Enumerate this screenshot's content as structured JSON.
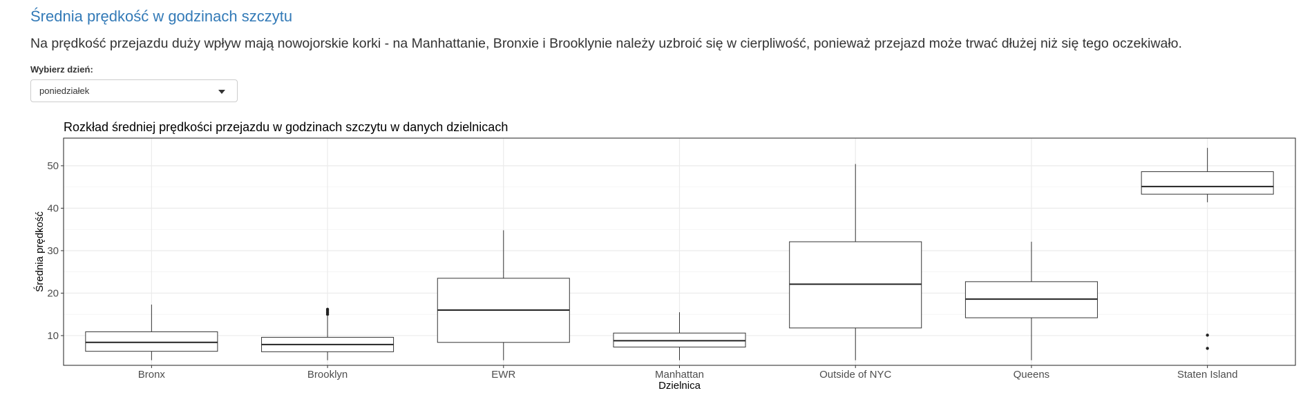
{
  "header": {
    "title": "Średnia prędkość w godzinach szczytu",
    "description": "Na prędkość przejazdu duży wpływ mają nowojorskie korki - na Manhattanie, Bronxie i Brooklynie należy uzbroić się w cierpliwość, ponieważ przejazd może trwać dłużej niż się tego oczekiwało."
  },
  "day_select": {
    "label": "Wybierz dzień:",
    "value": "poniedziałek",
    "icon": "chevron-down-icon"
  },
  "chart_data": {
    "type": "boxplot",
    "title": "Rozkład średniej prędkości przejazdu w godzinach szczytu w danych dzielnicach",
    "xlabel": "Dzielnica",
    "ylabel": "Średnia prędkość",
    "ylim": [
      3,
      56.5
    ],
    "yticks": [
      10,
      20,
      30,
      40,
      50
    ],
    "grid": true,
    "categories": [
      "Bronx",
      "Brooklyn",
      "EWR",
      "Manhattan",
      "Outside of NYC",
      "Queens",
      "Staten Island"
    ],
    "boxes": [
      {
        "category": "Bronx",
        "whisker_low": 4.2,
        "q1": 6.3,
        "median": 8.4,
        "q3": 10.9,
        "whisker_high": 17.3,
        "outliers": []
      },
      {
        "category": "Brooklyn",
        "whisker_low": 4.2,
        "q1": 6.2,
        "median": 7.9,
        "q3": 9.6,
        "whisker_high": 14.6,
        "outliers": [
          15.0,
          15.4,
          15.8,
          16.2
        ]
      },
      {
        "category": "EWR",
        "whisker_low": 4.2,
        "q1": 8.4,
        "median": 16.0,
        "q3": 23.5,
        "whisker_high": 34.8,
        "outliers": []
      },
      {
        "category": "Manhattan",
        "whisker_low": 4.2,
        "q1": 7.3,
        "median": 8.8,
        "q3": 10.6,
        "whisker_high": 15.5,
        "outliers": []
      },
      {
        "category": "Outside of NYC",
        "whisker_low": 4.2,
        "q1": 11.8,
        "median": 22.1,
        "q3": 32.1,
        "whisker_high": 50.4,
        "outliers": []
      },
      {
        "category": "Queens",
        "whisker_low": 4.2,
        "q1": 14.2,
        "median": 18.6,
        "q3": 22.7,
        "whisker_high": 32.1,
        "outliers": []
      },
      {
        "category": "Staten Island",
        "whisker_low": 41.4,
        "q1": 43.3,
        "median": 45.1,
        "q3": 48.6,
        "whisker_high": 54.2,
        "outliers": [
          10.1,
          7.0
        ]
      }
    ]
  }
}
